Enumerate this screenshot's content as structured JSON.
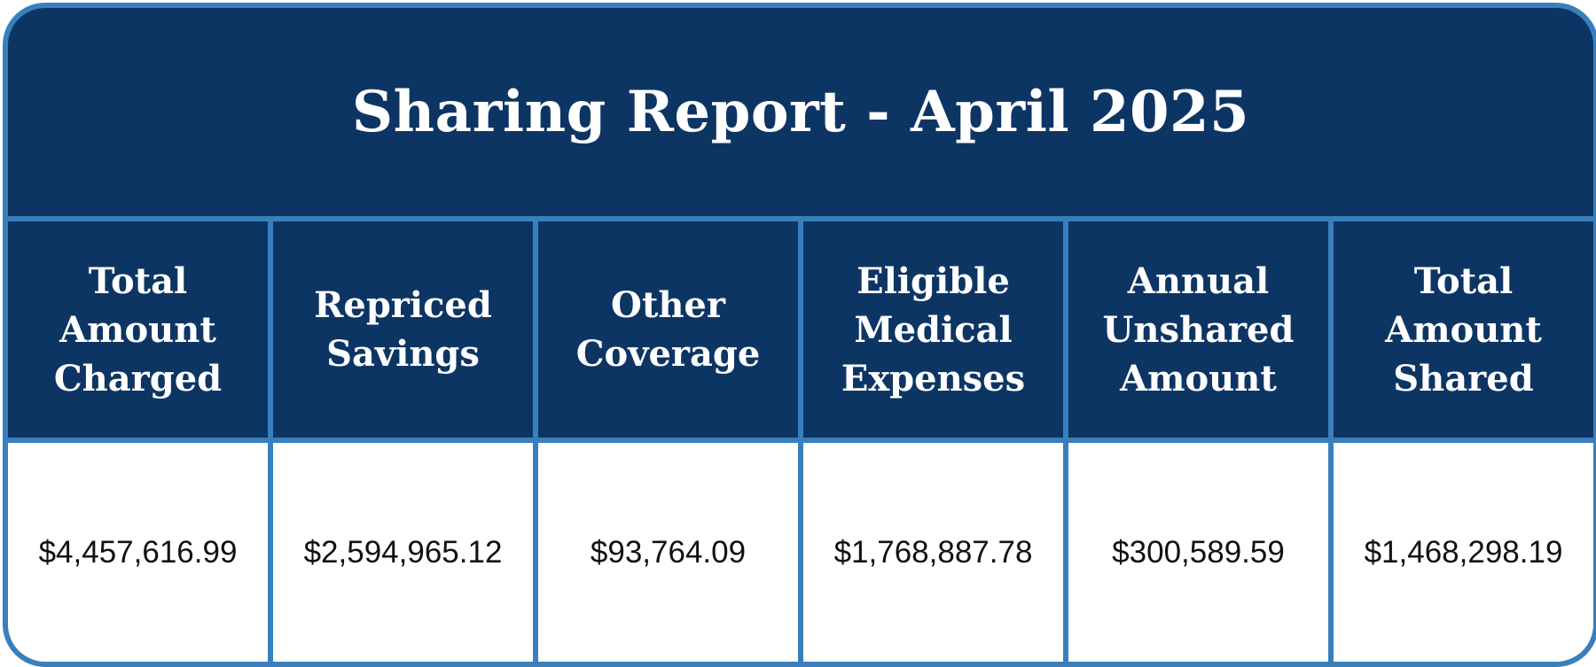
{
  "report": {
    "title": "Sharing Report - April 2025",
    "columns": [
      {
        "label": "Total\nAmount\nCharged",
        "value": "$4,457,616.99"
      },
      {
        "label": "Repriced\nSavings",
        "value": "$2,594,965.12"
      },
      {
        "label": "Other\nCoverage",
        "value": "$93,764.09"
      },
      {
        "label": "Eligible\nMedical\nExpenses",
        "value": "$1,768,887.78"
      },
      {
        "label": "Annual\nUnshared\nAmount",
        "value": "$300,589.59"
      },
      {
        "label": "Total\nAmount\nShared",
        "value": "$1,468,298.19"
      }
    ]
  },
  "colors": {
    "header_navy": "#0d3564",
    "border_blue": "#3a7fbd",
    "cell_white": "#ffffff"
  }
}
